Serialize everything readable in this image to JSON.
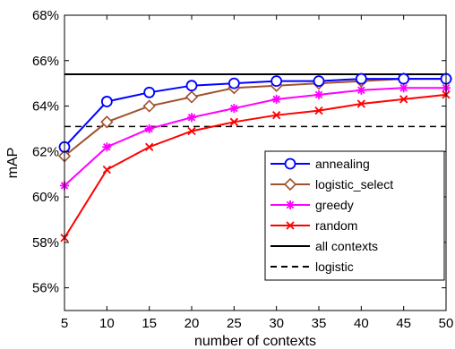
{
  "chart_data": {
    "type": "line",
    "xlabel": "number of contexts",
    "ylabel": "mAP",
    "x": [
      5,
      10,
      15,
      20,
      25,
      30,
      35,
      40,
      45,
      50
    ],
    "xlim": [
      5,
      50
    ],
    "ylim": [
      55,
      68
    ],
    "x_ticks": [
      "5",
      "10",
      "15",
      "20",
      "25",
      "30",
      "35",
      "40",
      "45",
      "50"
    ],
    "y_ticks": [
      {
        "value": 56,
        "label": "56%"
      },
      {
        "value": 58,
        "label": "58%"
      },
      {
        "value": 60,
        "label": "60%"
      },
      {
        "value": 62,
        "label": "62%"
      },
      {
        "value": 64,
        "label": "64%"
      },
      {
        "value": 66,
        "label": "66%"
      },
      {
        "value": 68,
        "label": "68%"
      }
    ],
    "grid": false,
    "legend_position": "right",
    "series": [
      {
        "name": "annealing",
        "color": "#0000ff",
        "marker": "circle",
        "values": [
          62.2,
          64.2,
          64.6,
          64.9,
          65.0,
          65.1,
          65.1,
          65.2,
          65.2,
          65.2
        ]
      },
      {
        "name": "logistic_select",
        "color": "#a0522d",
        "marker": "diamond",
        "values": [
          61.8,
          63.3,
          64.0,
          64.4,
          64.8,
          64.9,
          65.0,
          65.1,
          65.2,
          65.2
        ]
      },
      {
        "name": "greedy",
        "color": "#ff00ff",
        "marker": "asterisk",
        "values": [
          60.5,
          62.2,
          63.0,
          63.5,
          63.9,
          64.3,
          64.5,
          64.7,
          64.8,
          64.8
        ]
      },
      {
        "name": "random",
        "color": "#ff0000",
        "marker": "x",
        "values": [
          58.2,
          61.2,
          62.2,
          62.9,
          63.3,
          63.6,
          63.8,
          64.1,
          64.3,
          64.5
        ]
      }
    ],
    "reference_lines": [
      {
        "name": "all contexts",
        "value": 65.4,
        "color": "#000000",
        "style": "solid"
      },
      {
        "name": "logistic",
        "value": 63.1,
        "color": "#000000",
        "style": "dashed"
      }
    ]
  }
}
